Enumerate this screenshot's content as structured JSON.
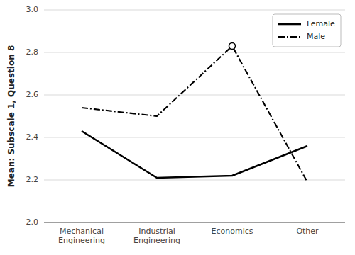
{
  "chart_data": {
    "type": "line",
    "categories": [
      "Mechanical\nEngineering",
      "Industrial\nEngineering",
      "Economics",
      "Other"
    ],
    "series": [
      {
        "name": "Female",
        "color": "#000000",
        "line_style": "solid",
        "values": [
          2.43,
          2.21,
          2.22,
          2.36
        ]
      },
      {
        "name": "Male",
        "color": "#000000",
        "line_style": "dashdot",
        "marker": "peak",
        "values": [
          2.54,
          2.5,
          2.83,
          2.19
        ]
      }
    ],
    "ylabel": "Mean: Subscale 1, Question 8",
    "ylim": [
      2.0,
      3.0
    ],
    "yticks": [
      {
        "value": 2.0,
        "label": "2.0"
      },
      2.2,
      2.4,
      2.6,
      2.8,
      {
        "value": 3.0,
        "label": "3.0"
      }
    ],
    "grid": true,
    "legend": "upper right"
  }
}
